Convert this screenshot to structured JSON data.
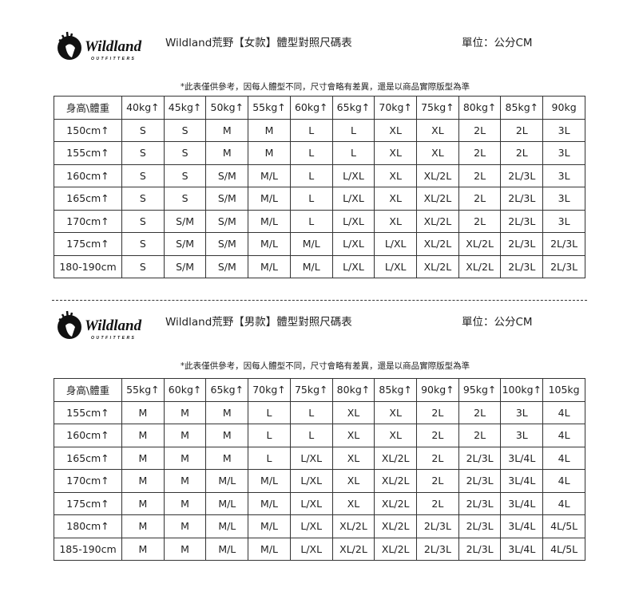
{
  "brand": {
    "logo_text": "Wildland",
    "logo_subtext": "OUTFITTERS"
  },
  "women": {
    "title": "Wildland荒野【女款】體型對照尺碼表",
    "unit": "單位：公分CM",
    "note": "*此表僅供參考，因每人體型不同，尺寸會略有差異，還是以商品實際版型為準",
    "header": [
      "身高\\體重",
      "40kg↑",
      "45kg↑",
      "50kg↑",
      "55kg↑",
      "60kg↑",
      "65kg↑",
      "70kg↑",
      "75kg↑",
      "80kg↑",
      "85kg↑",
      "90kg"
    ],
    "rows": [
      [
        "150cm↑",
        "S",
        "S",
        "M",
        "M",
        "L",
        "L",
        "XL",
        "XL",
        "2L",
        "2L",
        "3L"
      ],
      [
        "155cm↑",
        "S",
        "S",
        "M",
        "M",
        "L",
        "L",
        "XL",
        "XL",
        "2L",
        "2L",
        "3L"
      ],
      [
        "160cm↑",
        "S",
        "S",
        "S/M",
        "M/L",
        "L",
        "L/XL",
        "XL",
        "XL/2L",
        "2L",
        "2L/3L",
        "3L"
      ],
      [
        "165cm↑",
        "S",
        "S",
        "S/M",
        "M/L",
        "L",
        "L/XL",
        "XL",
        "XL/2L",
        "2L",
        "2L/3L",
        "3L"
      ],
      [
        "170cm↑",
        "S",
        "S/M",
        "S/M",
        "M/L",
        "L",
        "L/XL",
        "XL",
        "XL/2L",
        "2L",
        "2L/3L",
        "3L"
      ],
      [
        "175cm↑",
        "S",
        "S/M",
        "S/M",
        "M/L",
        "M/L",
        "L/XL",
        "L/XL",
        "XL/2L",
        "XL/2L",
        "2L/3L",
        "2L/3L"
      ],
      [
        "180-190cm",
        "S",
        "S/M",
        "S/M",
        "M/L",
        "M/L",
        "L/XL",
        "L/XL",
        "XL/2L",
        "XL/2L",
        "2L/3L",
        "2L/3L"
      ]
    ]
  },
  "men": {
    "title": "Wildland荒野【男款】體型對照尺碼表",
    "unit": "單位：公分CM",
    "note": "*此表僅供參考，因每人體型不同，尺寸會略有差異，還是以商品實際版型為準",
    "header": [
      "身高\\體重",
      "55kg↑",
      "60kg↑",
      "65kg↑",
      "70kg↑",
      "75kg↑",
      "80kg↑",
      "85kg↑",
      "90kg↑",
      "95kg↑",
      "100kg↑",
      "105kg"
    ],
    "rows": [
      [
        "155cm↑",
        "M",
        "M",
        "M",
        "L",
        "L",
        "XL",
        "XL",
        "2L",
        "2L",
        "3L",
        "4L"
      ],
      [
        "160cm↑",
        "M",
        "M",
        "M",
        "L",
        "L",
        "XL",
        "XL",
        "2L",
        "2L",
        "3L",
        "4L"
      ],
      [
        "165cm↑",
        "M",
        "M",
        "M",
        "L",
        "L/XL",
        "XL",
        "XL/2L",
        "2L",
        "2L/3L",
        "3L/4L",
        "4L"
      ],
      [
        "170cm↑",
        "M",
        "M",
        "M/L",
        "M/L",
        "L/XL",
        "XL",
        "XL/2L",
        "2L",
        "2L/3L",
        "3L/4L",
        "4L"
      ],
      [
        "175cm↑",
        "M",
        "M",
        "M/L",
        "M/L",
        "L/XL",
        "XL",
        "XL/2L",
        "2L",
        "2L/3L",
        "3L/4L",
        "4L"
      ],
      [
        "180cm↑",
        "M",
        "M",
        "M/L",
        "M/L",
        "L/XL",
        "XL/2L",
        "XL/2L",
        "2L/3L",
        "2L/3L",
        "3L/4L",
        "4L/5L"
      ],
      [
        "185-190cm",
        "M",
        "M",
        "M/L",
        "M/L",
        "L/XL",
        "XL/2L",
        "XL/2L",
        "2L/3L",
        "2L/3L",
        "3L/4L",
        "4L/5L"
      ]
    ]
  }
}
